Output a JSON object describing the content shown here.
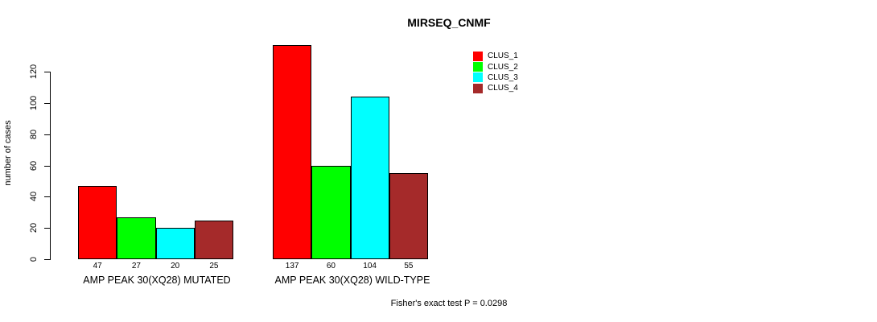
{
  "title": "MIRSEQ_CNMF",
  "legend": {
    "items": [
      {
        "label": "CLUS_1",
        "color": "#FF0000"
      },
      {
        "label": "CLUS_2",
        "color": "#00FF00"
      },
      {
        "label": "CLUS_3",
        "color": "#00FFFF"
      },
      {
        "label": "CLUS_4",
        "color": "#A52A2A"
      }
    ]
  },
  "chart_data": {
    "type": "bar",
    "title": "MIRSEQ_CNMF",
    "ylabel": "number of cases",
    "ylim": [
      0,
      140
    ],
    "yticks": [
      0,
      20,
      40,
      60,
      80,
      100,
      120
    ],
    "grid": false,
    "legend_position": "top-right",
    "groups": [
      "AMP PEAK 30(XQ28) MUTATED",
      "AMP PEAK 30(XQ28) WILD-TYPE"
    ],
    "series": [
      {
        "name": "CLUS_1",
        "color": "#FF0000",
        "values": [
          47,
          137
        ]
      },
      {
        "name": "CLUS_2",
        "color": "#00FF00",
        "values": [
          27,
          60
        ]
      },
      {
        "name": "CLUS_3",
        "color": "#00FFFF",
        "values": [
          20,
          104
        ]
      },
      {
        "name": "CLUS_4",
        "color": "#A52A2A",
        "values": [
          25,
          55
        ]
      }
    ],
    "bar_value_labels": [
      47,
      27,
      20,
      25,
      137,
      60,
      104,
      55
    ],
    "annotation": "Fisher's exact test P = 0.0298"
  }
}
